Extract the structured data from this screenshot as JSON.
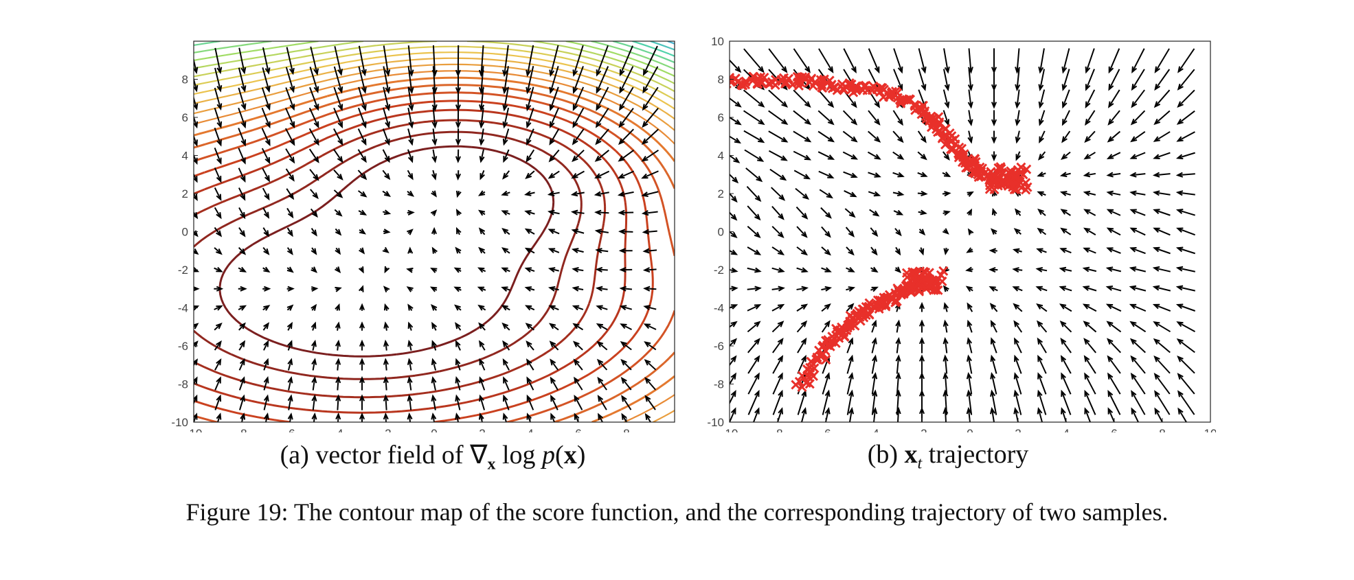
{
  "figure": {
    "caption": "Figure 19: The contour map of the score function, and the corresponding trajectory of two samples."
  },
  "panels": [
    {
      "id": "a",
      "caption_prefix": "(a) vector field of ",
      "caption_math": [
        "∇",
        "x",
        " log ",
        "p",
        "(",
        "x",
        ")"
      ],
      "colors": {
        "contour_inner": "#7b1f1f",
        "contour_mid": "#e07b2f",
        "contour_outer": "#2b3aa5",
        "arrow": "#000000"
      }
    },
    {
      "id": "b",
      "caption_prefix": "(b) ",
      "caption_math": [
        "x",
        "t",
        " trajectory"
      ],
      "colors": {
        "trajectory": "#e8302a",
        "arrow": "#000000"
      }
    }
  ],
  "chart_data": [
    {
      "type": "scatter",
      "subtype": "quiver-with-contours",
      "title": "",
      "xlim": [
        -10,
        10
      ],
      "ylim": [
        -10,
        10
      ],
      "x_ticks": [
        "-10",
        "-8",
        "-6",
        "-4",
        "-2",
        "0",
        "2",
        "4",
        "6",
        "8"
      ],
      "y_ticks": [
        "-10",
        "-8",
        "-6",
        "-4",
        "-2",
        "0",
        "2",
        "4",
        "6",
        "8"
      ],
      "grid": false,
      "modes": [
        {
          "mean": [
            1,
            2
          ],
          "spread": [
            3,
            2
          ]
        },
        {
          "mean": [
            -3,
            -3
          ],
          "spread": [
            5,
            3
          ]
        }
      ]
    },
    {
      "type": "scatter",
      "subtype": "quiver-with-trajectory",
      "title": "",
      "xlim": [
        -10,
        10
      ],
      "ylim": [
        -10,
        10
      ],
      "x_ticks": [
        "-10",
        "-8",
        "-6",
        "-4",
        "-2",
        "0",
        "2",
        "4",
        "6",
        "8",
        "10"
      ],
      "y_ticks": [
        "-10",
        "-8",
        "-6",
        "-4",
        "-2",
        "0",
        "2",
        "4",
        "6",
        "8",
        "10"
      ],
      "grid": false,
      "series": [
        {
          "marker": "x",
          "points": [
            [
              -10,
              7.9
            ],
            [
              -9,
              7.9
            ],
            [
              -8,
              7.9
            ],
            [
              -7,
              7.9
            ],
            [
              -6,
              7.8
            ],
            [
              -5,
              7.6
            ],
            [
              -4,
              7.4
            ],
            [
              -3,
              7.1
            ],
            [
              -2,
              6.5
            ],
            [
              -1.5,
              5.8
            ],
            [
              -1,
              5.0
            ],
            [
              -0.5,
              4.3
            ],
            [
              0,
              3.6
            ],
            [
              0.5,
              3.1
            ],
            [
              1,
              2.7
            ],
            [
              1.5,
              2.6
            ],
            [
              2,
              2.8
            ]
          ]
        },
        {
          "marker": "x",
          "points": [
            [
              -7,
              -8
            ],
            [
              -6.5,
              -7
            ],
            [
              -6,
              -6.2
            ],
            [
              -5.5,
              -5.5
            ],
            [
              -5,
              -4.8
            ],
            [
              -4.5,
              -4.3
            ],
            [
              -4,
              -3.9
            ],
            [
              -3.5,
              -3.6
            ],
            [
              -3,
              -3.3
            ],
            [
              -2.5,
              -3.0
            ],
            [
              -2,
              -2.7
            ],
            [
              -1.5,
              -2.6
            ]
          ]
        }
      ]
    }
  ]
}
